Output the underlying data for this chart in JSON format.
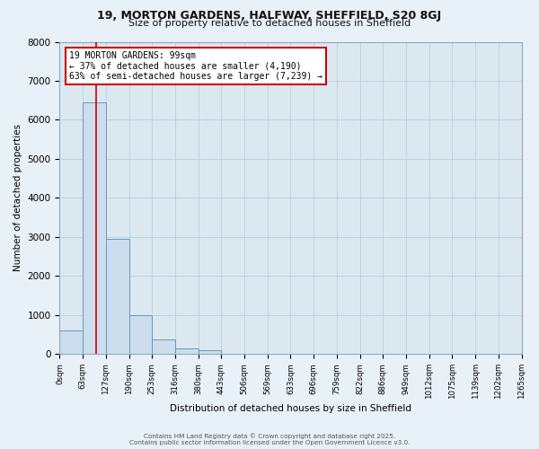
{
  "title1": "19, MORTON GARDENS, HALFWAY, SHEFFIELD, S20 8GJ",
  "title2": "Size of property relative to detached houses in Sheffield",
  "xlabel": "Distribution of detached houses by size in Sheffield",
  "ylabel": "Number of detached properties",
  "xtick_labels": [
    "0sqm",
    "63sqm",
    "127sqm",
    "190sqm",
    "253sqm",
    "316sqm",
    "380sqm",
    "443sqm",
    "506sqm",
    "569sqm",
    "633sqm",
    "696sqm",
    "759sqm",
    "822sqm",
    "886sqm",
    "949sqm",
    "1012sqm",
    "1075sqm",
    "1139sqm",
    "1202sqm",
    "1265sqm"
  ],
  "bar_values": [
    600,
    6450,
    2950,
    1000,
    380,
    150,
    100,
    0,
    0,
    0,
    0,
    0,
    0,
    0,
    0,
    0,
    0,
    0,
    0,
    0
  ],
  "bar_color": "#ccdded",
  "bar_edgecolor": "#6699bb",
  "bar_linewidth": 0.7,
  "grid_color": "#b8cfe0",
  "bg_color": "#dce8f0",
  "fig_bg_color": "#e8f0f8",
  "vline_x": 1.575,
  "vline_color": "#cc0000",
  "vline_linewidth": 1.2,
  "annotation_text": "19 MORTON GARDENS: 99sqm\n← 37% of detached houses are smaller (4,190)\n63% of semi-detached houses are larger (7,239) →",
  "annotation_box_color": "#ffffff",
  "annotation_border_color": "#cc0000",
  "ylim": [
    0,
    8000
  ],
  "yticks": [
    0,
    1000,
    2000,
    3000,
    4000,
    5000,
    6000,
    7000,
    8000
  ],
  "footnote1": "Contains HM Land Registry data © Crown copyright and database right 2025.",
  "footnote2": "Contains public sector information licensed under the Open Government Licence v3.0."
}
